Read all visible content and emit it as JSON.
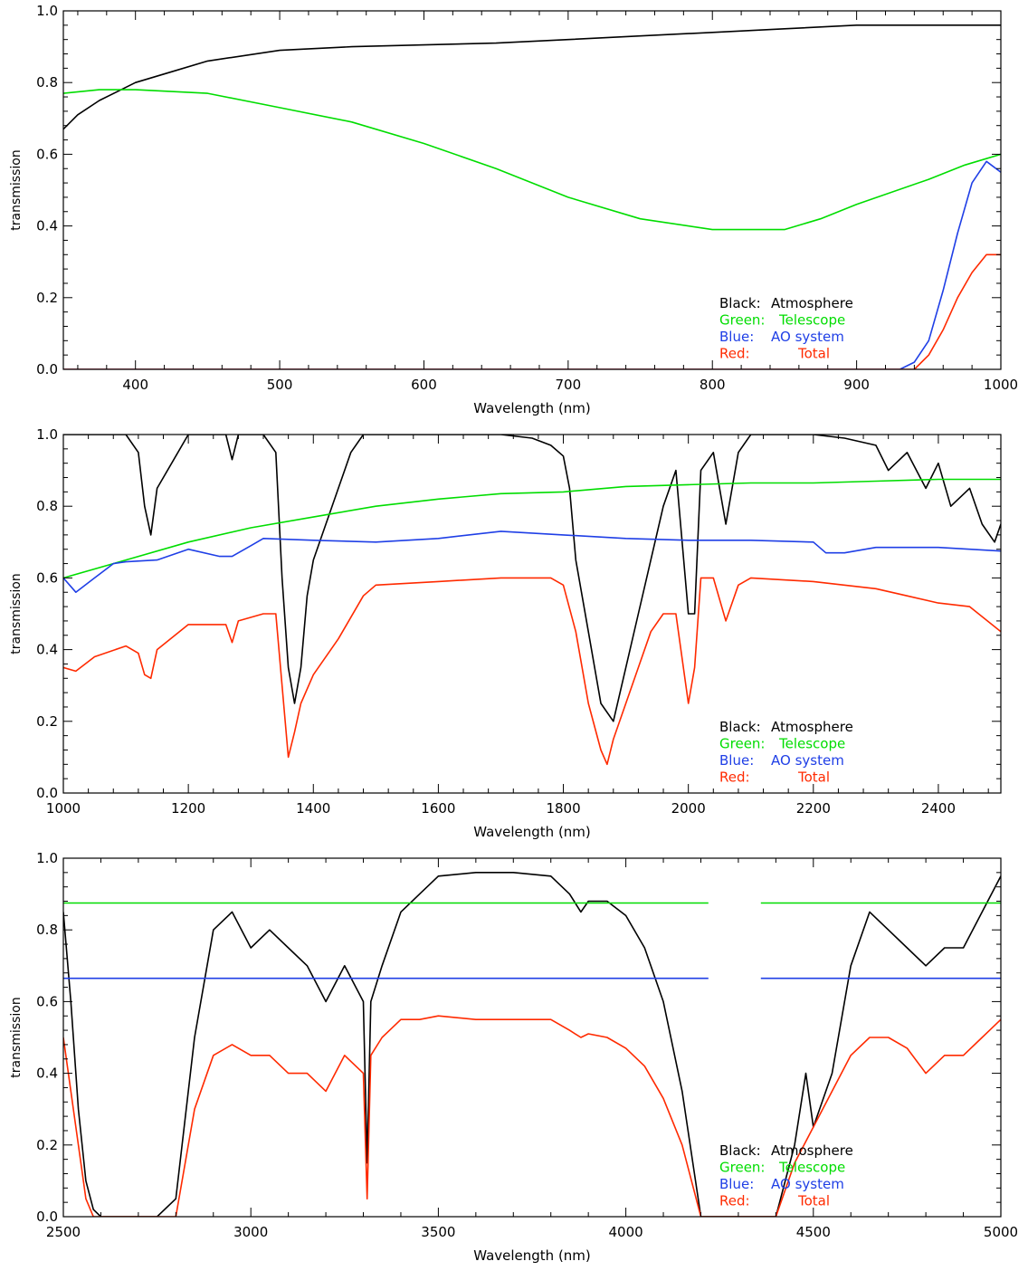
{
  "colors": {
    "atmosphere": "#000000",
    "telescope": "#00dd00",
    "ao_system": "#1f3fe6",
    "total": "#ff2a00",
    "axis": "#000000"
  },
  "legend_lines": [
    {
      "prefix": "Black:",
      "text": "Atmosphere",
      "color": "#000000"
    },
    {
      "prefix": "Green:",
      "text": "Telescope",
      "color": "#00dd00"
    },
    {
      "prefix": "Blue:",
      "text": "AO system",
      "color": "#1f3fe6"
    },
    {
      "prefix": "Red:",
      "text": "Total",
      "color": "#ff2a00"
    }
  ],
  "chart_data": [
    {
      "type": "line",
      "xlabel": "Wavelength (nm)",
      "ylabel": "transmission",
      "xlim": [
        350,
        1000
      ],
      "ylim": [
        0,
        1
      ],
      "xticks": [
        400,
        500,
        600,
        700,
        800,
        900,
        1000
      ],
      "yticks": [
        0.0,
        0.2,
        0.4,
        0.6,
        0.8,
        1.0
      ],
      "legend_position": "bottom-right",
      "series": [
        {
          "key": "atmosphere",
          "x": [
            350,
            360,
            375,
            400,
            425,
            450,
            500,
            550,
            600,
            650,
            700,
            750,
            800,
            850,
            900,
            950,
            1000
          ],
          "y": [
            0.67,
            0.71,
            0.75,
            0.8,
            0.83,
            0.86,
            0.89,
            0.9,
            0.905,
            0.91,
            0.92,
            0.93,
            0.94,
            0.95,
            0.96,
            0.96,
            0.96
          ]
        },
        {
          "key": "telescope",
          "x": [
            350,
            375,
            400,
            450,
            500,
            550,
            600,
            650,
            700,
            750,
            800,
            850,
            875,
            900,
            950,
            975,
            1000
          ],
          "y": [
            0.77,
            0.78,
            0.78,
            0.77,
            0.73,
            0.69,
            0.63,
            0.56,
            0.48,
            0.42,
            0.39,
            0.39,
            0.42,
            0.46,
            0.53,
            0.57,
            0.6
          ]
        },
        {
          "key": "ao_system",
          "x": [
            350,
            930,
            940,
            950,
            960,
            970,
            980,
            990,
            1000
          ],
          "y": [
            0.0,
            0.0,
            0.02,
            0.08,
            0.22,
            0.38,
            0.52,
            0.58,
            0.55
          ]
        },
        {
          "key": "total",
          "x": [
            350,
            940,
            950,
            960,
            970,
            980,
            990,
            1000
          ],
          "y": [
            0.0,
            0.0,
            0.04,
            0.11,
            0.2,
            0.27,
            0.32,
            0.32
          ]
        }
      ]
    },
    {
      "type": "line",
      "xlabel": "Wavelength (nm)",
      "ylabel": "transmission",
      "xlim": [
        1000,
        2500
      ],
      "ylim": [
        0,
        1
      ],
      "xticks": [
        1000,
        1200,
        1400,
        1600,
        1800,
        2000,
        2200,
        2400
      ],
      "yticks": [
        0.0,
        0.2,
        0.4,
        0.6,
        0.8,
        1.0
      ],
      "legend_position": "bottom-right",
      "series": [
        {
          "key": "atmosphere",
          "x": [
            1000,
            1100,
            1120,
            1130,
            1140,
            1150,
            1200,
            1260,
            1270,
            1280,
            1320,
            1340,
            1350,
            1360,
            1370,
            1380,
            1390,
            1400,
            1420,
            1440,
            1460,
            1480,
            1500,
            1600,
            1700,
            1750,
            1780,
            1800,
            1810,
            1820,
            1840,
            1860,
            1880,
            1900,
            1920,
            1940,
            1960,
            1980,
            2000,
            2010,
            2020,
            2040,
            2060,
            2080,
            2100,
            2200,
            2250,
            2300,
            2320,
            2350,
            2380,
            2400,
            2420,
            2450,
            2470,
            2490,
            2500
          ],
          "y": [
            1.0,
            1.0,
            0.95,
            0.8,
            0.72,
            0.85,
            1.0,
            1.0,
            0.93,
            1.0,
            1.0,
            0.95,
            0.6,
            0.35,
            0.25,
            0.35,
            0.55,
            0.65,
            0.75,
            0.85,
            0.95,
            1.0,
            1.0,
            1.0,
            1.0,
            0.99,
            0.97,
            0.94,
            0.85,
            0.65,
            0.45,
            0.25,
            0.2,
            0.35,
            0.5,
            0.65,
            0.8,
            0.9,
            0.5,
            0.5,
            0.9,
            0.95,
            0.75,
            0.95,
            1.0,
            1.0,
            0.99,
            0.97,
            0.9,
            0.95,
            0.85,
            0.92,
            0.8,
            0.85,
            0.75,
            0.7,
            0.75
          ]
        },
        {
          "key": "telescope",
          "x": [
            1000,
            1100,
            1200,
            1300,
            1400,
            1500,
            1600,
            1700,
            1800,
            1900,
            2000,
            2100,
            2200,
            2300,
            2400,
            2500
          ],
          "y": [
            0.6,
            0.65,
            0.7,
            0.74,
            0.77,
            0.8,
            0.82,
            0.835,
            0.84,
            0.855,
            0.86,
            0.865,
            0.865,
            0.87,
            0.875,
            0.875
          ]
        },
        {
          "key": "ao_system",
          "x": [
            1000,
            1020,
            1050,
            1080,
            1100,
            1150,
            1200,
            1250,
            1270,
            1300,
            1320,
            1400,
            1500,
            1600,
            1700,
            1800,
            1900,
            2000,
            2100,
            2200,
            2220,
            2250,
            2300,
            2400,
            2500
          ],
          "y": [
            0.6,
            0.56,
            0.6,
            0.64,
            0.645,
            0.65,
            0.68,
            0.66,
            0.66,
            0.69,
            0.71,
            0.705,
            0.7,
            0.71,
            0.73,
            0.72,
            0.71,
            0.705,
            0.705,
            0.7,
            0.67,
            0.67,
            0.685,
            0.685,
            0.675
          ]
        },
        {
          "key": "total",
          "x": [
            1000,
            1020,
            1050,
            1100,
            1120,
            1130,
            1140,
            1150,
            1200,
            1260,
            1270,
            1280,
            1320,
            1340,
            1350,
            1360,
            1370,
            1380,
            1400,
            1440,
            1480,
            1500,
            1600,
            1700,
            1780,
            1800,
            1820,
            1840,
            1860,
            1870,
            1880,
            1900,
            1920,
            1940,
            1960,
            1980,
            2000,
            2010,
            2020,
            2040,
            2060,
            2080,
            2100,
            2200,
            2300,
            2350,
            2400,
            2450,
            2500
          ],
          "y": [
            0.35,
            0.34,
            0.38,
            0.41,
            0.39,
            0.33,
            0.32,
            0.4,
            0.47,
            0.47,
            0.42,
            0.48,
            0.5,
            0.5,
            0.3,
            0.1,
            0.17,
            0.25,
            0.33,
            0.43,
            0.55,
            0.58,
            0.59,
            0.6,
            0.6,
            0.58,
            0.45,
            0.25,
            0.12,
            0.08,
            0.15,
            0.25,
            0.35,
            0.45,
            0.5,
            0.5,
            0.25,
            0.35,
            0.6,
            0.6,
            0.48,
            0.58,
            0.6,
            0.59,
            0.57,
            0.55,
            0.53,
            0.52,
            0.45
          ]
        }
      ]
    },
    {
      "type": "line",
      "xlabel": "Wavelength (nm)",
      "ylabel": "transmission",
      "xlim": [
        2500,
        5000
      ],
      "ylim": [
        0,
        1
      ],
      "xticks": [
        2500,
        3000,
        3500,
        4000,
        4500,
        5000
      ],
      "yticks": [
        0.0,
        0.2,
        0.4,
        0.6,
        0.8,
        1.0
      ],
      "legend_position": "bottom-right",
      "series": [
        {
          "key": "atmosphere",
          "x": [
            2500,
            2520,
            2540,
            2560,
            2580,
            2600,
            2650,
            2700,
            2750,
            2800,
            2850,
            2900,
            2950,
            3000,
            3050,
            3100,
            3150,
            3200,
            3250,
            3300,
            3310,
            3320,
            3350,
            3400,
            3450,
            3500,
            3600,
            3700,
            3800,
            3850,
            3880,
            3900,
            3950,
            4000,
            4050,
            4100,
            4150,
            4200,
            4400,
            4450,
            4480,
            4500,
            4550,
            4600,
            4650,
            4700,
            4750,
            4800,
            4850,
            4900,
            4950,
            5000
          ],
          "y": [
            0.85,
            0.6,
            0.3,
            0.1,
            0.02,
            0.0,
            0.0,
            0.0,
            0.0,
            0.05,
            0.5,
            0.8,
            0.85,
            0.75,
            0.8,
            0.75,
            0.7,
            0.6,
            0.7,
            0.6,
            0.15,
            0.6,
            0.7,
            0.85,
            0.9,
            0.95,
            0.96,
            0.96,
            0.95,
            0.9,
            0.85,
            0.88,
            0.88,
            0.84,
            0.75,
            0.6,
            0.35,
            0.0,
            0.0,
            0.2,
            0.4,
            0.25,
            0.4,
            0.7,
            0.85,
            0.8,
            0.75,
            0.7,
            0.75,
            0.75,
            0.85,
            0.95
          ]
        },
        {
          "key": "telescope",
          "x": [
            2500,
            4220,
            4360,
            5000
          ],
          "y": [
            0.875,
            0.875,
            0.875,
            0.875
          ],
          "gap": [
            4220,
            4360
          ]
        },
        {
          "key": "ao_system",
          "x": [
            2500,
            4220,
            4360,
            5000
          ],
          "y": [
            0.665,
            0.665,
            0.665,
            0.665
          ],
          "gap": [
            4220,
            4360
          ]
        },
        {
          "key": "total",
          "x": [
            2500,
            2520,
            2540,
            2560,
            2580,
            2600,
            2650,
            2700,
            2750,
            2800,
            2850,
            2900,
            2950,
            3000,
            3050,
            3100,
            3150,
            3200,
            3250,
            3300,
            3310,
            3320,
            3350,
            3400,
            3450,
            3500,
            3600,
            3700,
            3800,
            3850,
            3880,
            3900,
            3950,
            4000,
            4050,
            4100,
            4150,
            4200,
            4400,
            4450,
            4500,
            4550,
            4600,
            4650,
            4700,
            4750,
            4800,
            4850,
            4900,
            4950,
            5000
          ],
          "y": [
            0.5,
            0.35,
            0.2,
            0.05,
            0.0,
            0.0,
            0.0,
            0.0,
            0.0,
            0.0,
            0.3,
            0.45,
            0.48,
            0.45,
            0.45,
            0.4,
            0.4,
            0.35,
            0.45,
            0.4,
            0.05,
            0.45,
            0.5,
            0.55,
            0.55,
            0.56,
            0.55,
            0.55,
            0.55,
            0.52,
            0.5,
            0.51,
            0.5,
            0.47,
            0.42,
            0.33,
            0.2,
            0.0,
            0.0,
            0.15,
            0.25,
            0.35,
            0.45,
            0.5,
            0.5,
            0.47,
            0.4,
            0.45,
            0.45,
            0.5,
            0.55
          ]
        }
      ]
    }
  ]
}
